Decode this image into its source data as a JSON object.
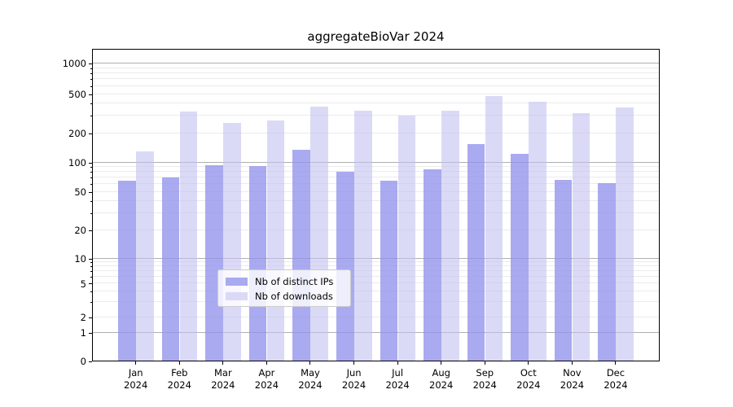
{
  "title": "aggregateBioVar 2024",
  "legend": {
    "items": [
      {
        "label": "Nb of distinct IPs",
        "color": "#aaaaf0"
      },
      {
        "label": "Nb of downloads",
        "color": "#dadaf7"
      }
    ]
  },
  "chart_data": {
    "type": "bar",
    "title": "aggregateBioVar 2024",
    "categories": [
      "Jan",
      "Feb",
      "Mar",
      "Apr",
      "May",
      "Jun",
      "Jul",
      "Aug",
      "Sep",
      "Oct",
      "Nov",
      "Dec"
    ],
    "year_label": "2024",
    "series": [
      {
        "name": "Nb of distinct IPs",
        "color": "#aaaaf0",
        "fill": "rgba(146,146,236,0.78)",
        "values": [
          64,
          70,
          93,
          91,
          134,
          80,
          65,
          84,
          153,
          123,
          66,
          61
        ]
      },
      {
        "name": "Nb of downloads",
        "color": "#dadaf7",
        "fill": "rgba(193,193,242,0.6)",
        "values": [
          129,
          330,
          253,
          268,
          367,
          333,
          302,
          335,
          475,
          417,
          319,
          362
        ]
      }
    ],
    "yticks": [
      0,
      1,
      2,
      5,
      10,
      20,
      50,
      100,
      200,
      500,
      1000
    ],
    "xlabel": "",
    "ylabel": "",
    "ylim": [
      0,
      1400
    ],
    "scale": "log-like (linear 0-1, logarithmic between labeled ticks)",
    "grid": true,
    "legend_position": "lower center"
  }
}
